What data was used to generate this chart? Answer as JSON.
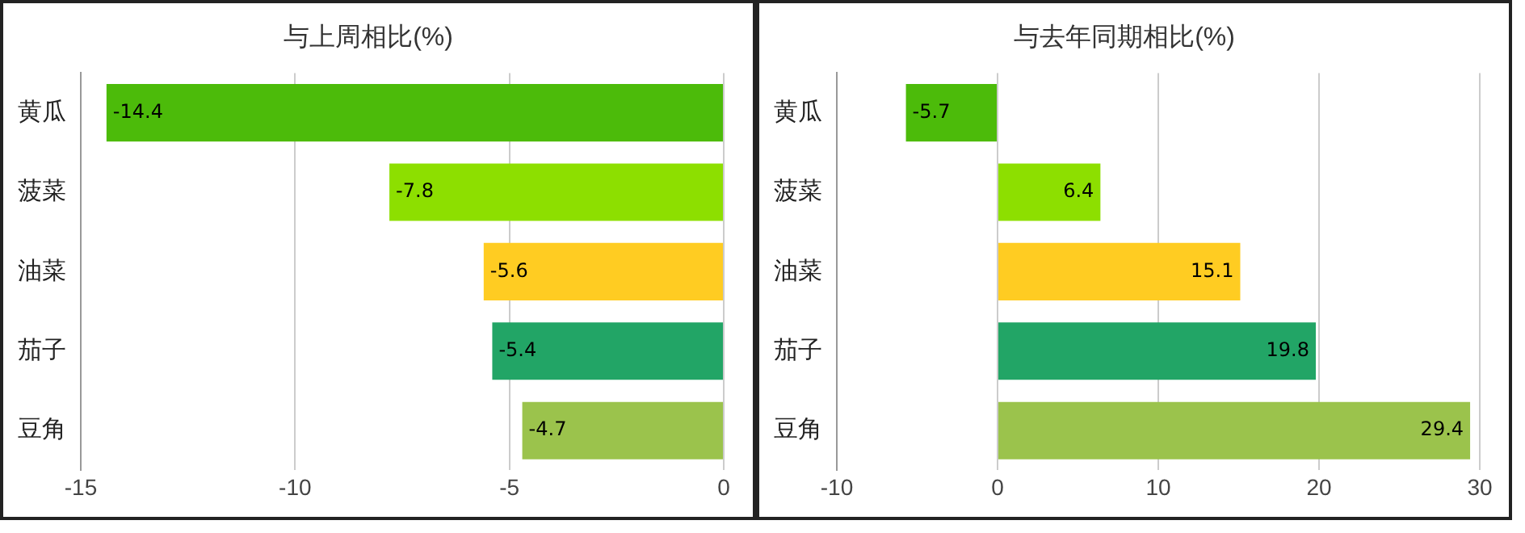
{
  "chart_data": [
    {
      "type": "bar",
      "orientation": "horizontal",
      "title": "与上周相比(%)",
      "categories": [
        "黄瓜",
        "菠菜",
        "油菜",
        "茄子",
        "豆角"
      ],
      "values": [
        -14.4,
        -7.8,
        -5.6,
        -5.4,
        -4.7
      ],
      "colors": [
        "#4cbb0a",
        "#8ddf00",
        "#ffcc22",
        "#22a566",
        "#9bc34c"
      ],
      "xlim": [
        -15,
        0
      ],
      "xticks": [
        -15,
        -10,
        -5,
        0
      ],
      "grid": "x",
      "legend": false,
      "data_labels": true
    },
    {
      "type": "bar",
      "orientation": "horizontal",
      "title": "与去年同期相比(%)",
      "categories": [
        "黄瓜",
        "菠菜",
        "油菜",
        "茄子",
        "豆角"
      ],
      "values": [
        -5.7,
        6.4,
        15.1,
        19.8,
        29.4
      ],
      "colors": [
        "#4cbb0a",
        "#8ddf00",
        "#ffcc22",
        "#22a566",
        "#9bc34c"
      ],
      "xlim": [
        -10,
        30
      ],
      "xticks": [
        -10,
        0,
        10,
        20,
        30
      ],
      "grid": "x",
      "legend": false,
      "data_labels": true
    }
  ]
}
